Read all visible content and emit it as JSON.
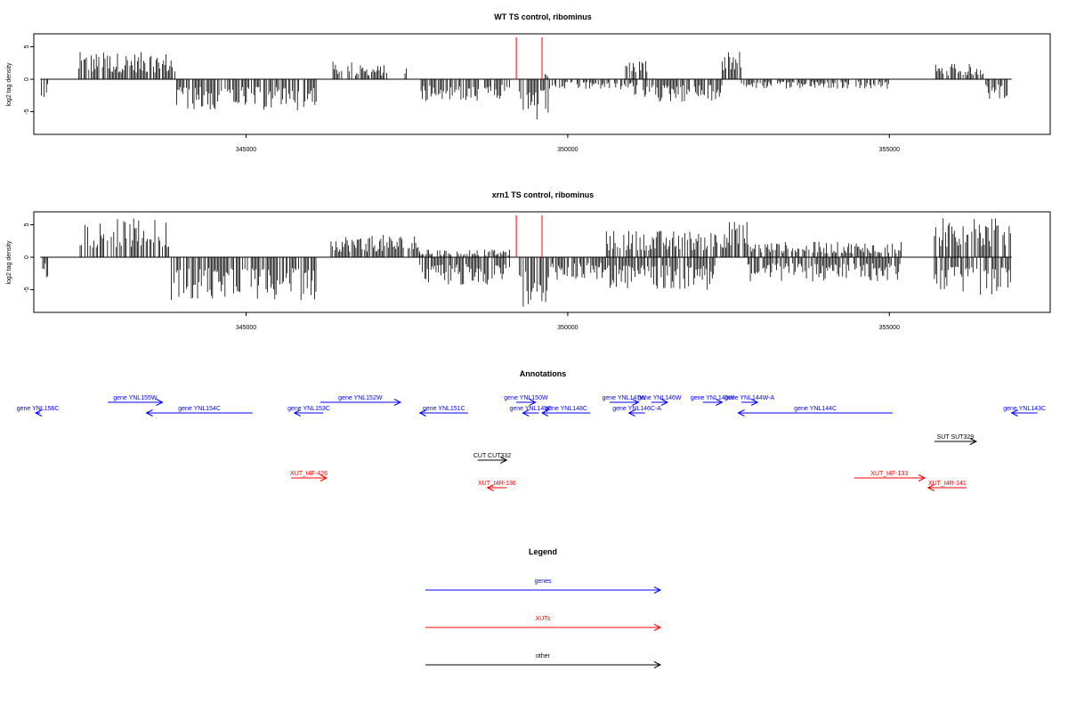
{
  "chart_data": [
    {
      "type": "bar",
      "title": "WT TS control, ribominus",
      "ylabel": "log2 tag density",
      "xlim": [
        341700,
        357500
      ],
      "ylim": [
        -8.5,
        7
      ],
      "yticks": [
        -5,
        0,
        5
      ],
      "xticks": [
        345000,
        350000,
        355000
      ],
      "grid": false,
      "markers": [
        349200,
        349600
      ],
      "positive_segments": [
        {
          "x": [
            342400,
            343900
          ],
          "ymax": 4.2
        },
        {
          "x": [
            346350,
            346650
          ],
          "ymax": 2.8
        },
        {
          "x": [
            346700,
            347200
          ],
          "ymax": 2.2
        },
        {
          "x": [
            347450,
            347500
          ],
          "ymax": 2.3
        },
        {
          "x": [
            349650,
            349700
          ],
          "ymax": 1.0
        },
        {
          "x": [
            350900,
            351300
          ],
          "ymax": 3.4
        },
        {
          "x": [
            352400,
            352700
          ],
          "ymax": 5.3
        },
        {
          "x": [
            355700,
            356500
          ],
          "ymax": 2.4
        }
      ],
      "negative_segments": [
        {
          "x": [
            341800,
            341950
          ],
          "ymax": 3.0
        },
        {
          "x": [
            343900,
            346100
          ],
          "ymax": 4.8
        },
        {
          "x": [
            347700,
            349100
          ],
          "ymax": 3.4
        },
        {
          "x": [
            349250,
            349700
          ],
          "ymax": 6.6
        },
        {
          "x": [
            349700,
            351000
          ],
          "ymax": 1.6
        },
        {
          "x": [
            351000,
            352400
          ],
          "ymax": 3.6
        },
        {
          "x": [
            352700,
            355000
          ],
          "ymax": 1.5
        },
        {
          "x": [
            356500,
            356900
          ],
          "ymax": 3.2
        }
      ]
    },
    {
      "type": "bar",
      "title": "xrn1 TS control, ribominus",
      "ylabel": "log2 tag density",
      "xlim": [
        341700,
        357500
      ],
      "ylim": [
        -8.5,
        7
      ],
      "yticks": [
        -5,
        0,
        5
      ],
      "xticks": [
        345000,
        350000,
        355000
      ],
      "grid": false,
      "markers": [
        349200,
        349600
      ],
      "positive_segments": [
        {
          "x": [
            342400,
            343800
          ],
          "ymax": 6.0
        },
        {
          "x": [
            346300,
            347700
          ],
          "ymax": 3.5
        },
        {
          "x": [
            347700,
            349100
          ],
          "ymax": 1.2
        },
        {
          "x": [
            350600,
            352300
          ],
          "ymax": 4.2
        },
        {
          "x": [
            352300,
            352800
          ],
          "ymax": 5.8
        },
        {
          "x": [
            352800,
            355200
          ],
          "ymax": 2.4
        },
        {
          "x": [
            355700,
            356900
          ],
          "ymax": 6.3
        }
      ],
      "negative_segments": [
        {
          "x": [
            341800,
            341950
          ],
          "ymax": 3.6
        },
        {
          "x": [
            343800,
            346100
          ],
          "ymax": 6.7
        },
        {
          "x": [
            347700,
            349100
          ],
          "ymax": 4.3
        },
        {
          "x": [
            349250,
            349700
          ],
          "ymax": 8.1
        },
        {
          "x": [
            349700,
            350600
          ],
          "ymax": 3.5
        },
        {
          "x": [
            350600,
            352300
          ],
          "ymax": 5.0
        },
        {
          "x": [
            352800,
            355200
          ],
          "ymax": 3.8
        },
        {
          "x": [
            355700,
            356900
          ],
          "ymax": 5.8
        }
      ]
    }
  ],
  "annotations": {
    "title": "Annotations",
    "items": [
      {
        "label": "gene YNL156C",
        "type": "gene",
        "start": 341800,
        "end": 341200,
        "row": 1
      },
      {
        "label": "gene YNL155W",
        "type": "gene",
        "start": 342850,
        "end": 343700,
        "row": 0
      },
      {
        "label": "gene YNL154C",
        "type": "gene",
        "start": 345100,
        "end": 343450,
        "row": 1
      },
      {
        "label": "gene YNL153C",
        "type": "gene",
        "start": 346200,
        "end": 345750,
        "row": 1
      },
      {
        "label": "gene YNL152W",
        "type": "gene",
        "start": 346150,
        "end": 347400,
        "row": 0
      },
      {
        "label": "gene YNL151C",
        "type": "gene",
        "start": 348450,
        "end": 347700,
        "row": 1
      },
      {
        "label": "gene YNL150W",
        "type": "gene",
        "start": 349200,
        "end": 349500,
        "row": 0
      },
      {
        "label": "gene YNL149C",
        "type": "gene",
        "start": 349550,
        "end": 349300,
        "row": 1
      },
      {
        "label": "gene YNL148C",
        "type": "gene",
        "start": 350350,
        "end": 349600,
        "row": 1
      },
      {
        "label": "gene YNL147W",
        "type": "gene",
        "start": 350650,
        "end": 351100,
        "row": 0
      },
      {
        "label": "gene YNL146W",
        "type": "gene",
        "start": 351300,
        "end": 351550,
        "row": 0
      },
      {
        "label": "gene YNL146C-A",
        "type": "gene",
        "start": 351200,
        "end": 350950,
        "row": 1
      },
      {
        "label": "gene YNL145W",
        "type": "gene",
        "start": 352100,
        "end": 352400,
        "row": 0
      },
      {
        "label": "gene YNL144W-A",
        "type": "gene",
        "start": 352700,
        "end": 352950,
        "row": 0
      },
      {
        "label": "gene YNL144C",
        "type": "gene",
        "start": 355050,
        "end": 352650,
        "row": 1
      },
      {
        "label": "gene YNL143C",
        "type": "gene",
        "start": 357300,
        "end": 356900,
        "row": 1
      },
      {
        "label": "SUT SUT329",
        "type": "other",
        "start": 355700,
        "end": 356350,
        "row": 2
      },
      {
        "label": "CUT CUT332",
        "type": "other",
        "start": 348600,
        "end": 349050,
        "row": 3
      },
      {
        "label": "XUT_t4F-426",
        "type": "xut",
        "start": 345700,
        "end": 346250,
        "row": 4
      },
      {
        "label": "XUT_t4R-136",
        "type": "xut",
        "start": 349050,
        "end": 348750,
        "row": 5
      },
      {
        "label": "XUT_t4F-133",
        "type": "xut",
        "start": 354450,
        "end": 355550,
        "row": 4
      },
      {
        "label": "XUT_t4R-141",
        "type": "xut",
        "start": 356200,
        "end": 355600,
        "row": 5
      }
    ]
  },
  "legend": {
    "title": "Legend",
    "items": [
      {
        "label": "genes",
        "type": "gene"
      },
      {
        "label": "XUTs",
        "type": "xut"
      },
      {
        "label": "other",
        "type": "other"
      }
    ]
  },
  "colors": {
    "gene": "#0000ff",
    "xut": "#ff0000",
    "other": "#000000",
    "marker": "#ff0000"
  }
}
